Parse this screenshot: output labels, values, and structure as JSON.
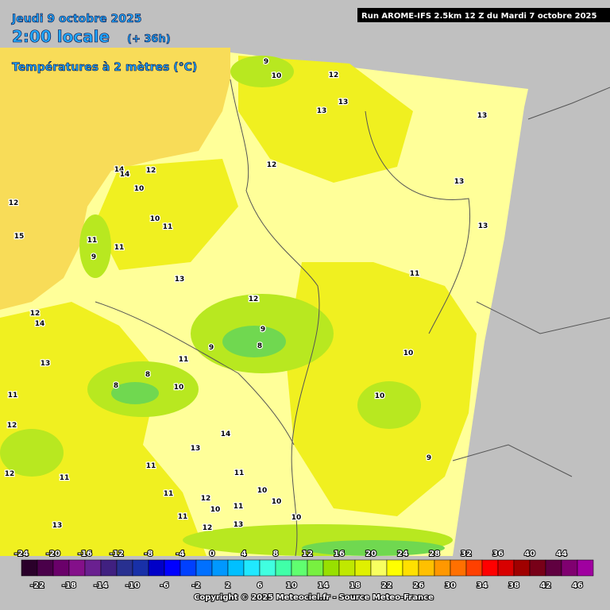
{
  "header": {
    "date": "Jeudi 9 octobre 2025",
    "time": "2:00 locale",
    "lead": "(+ 36h)",
    "field": "Températures à 2 mètres (°C)",
    "run": "Run AROME-IFS 2.5km 12 Z du Mardi 7 octobre 2025"
  },
  "map": {
    "contour_labels": [
      9,
      10,
      12,
      13,
      13,
      13,
      14,
      12,
      12,
      14,
      12,
      10,
      13,
      10,
      11,
      11,
      9,
      11,
      15,
      13,
      11,
      12,
      14,
      13,
      12,
      11,
      9,
      8,
      9,
      11,
      10,
      12,
      13,
      8,
      8,
      11,
      11,
      10,
      12,
      14,
      13,
      11,
      10,
      11,
      10,
      13,
      12,
      10,
      10,
      9,
      12,
      11,
      13,
      12,
      11,
      10
    ]
  },
  "legend": {
    "ticks_top": [
      -24,
      -20,
      -16,
      -12,
      -8,
      -4,
      0,
      4,
      8,
      12,
      16,
      20,
      24,
      28,
      32,
      36,
      40,
      44
    ],
    "ticks_bottom": [
      -22,
      -18,
      -14,
      -10,
      -6,
      -2,
      2,
      6,
      10,
      14,
      18,
      22,
      26,
      30,
      34,
      38,
      42,
      46
    ],
    "colors": [
      "#2a002a",
      "#4a004a",
      "#6a006a",
      "#84108a",
      "#6a2090",
      "#402080",
      "#283090",
      "#1830a8",
      "#0000c8",
      "#0000ff",
      "#0040ff",
      "#0070ff",
      "#0098ff",
      "#00c0ff",
      "#20e8ff",
      "#40ffe0",
      "#40ffa8",
      "#60ff70",
      "#78f040",
      "#98e000",
      "#c0e800",
      "#e0f000",
      "#f8ff60",
      "#ffff00",
      "#ffe000",
      "#ffc000",
      "#ff9800",
      "#ff7000",
      "#ff4000",
      "#ff0000",
      "#d80000",
      "#a00000",
      "#780018",
      "#600040",
      "#800070",
      "#a000a0"
    ]
  },
  "footer": {
    "copyright": "Copyright © 2025 Meteociel.fr - Source Meteo-France"
  }
}
